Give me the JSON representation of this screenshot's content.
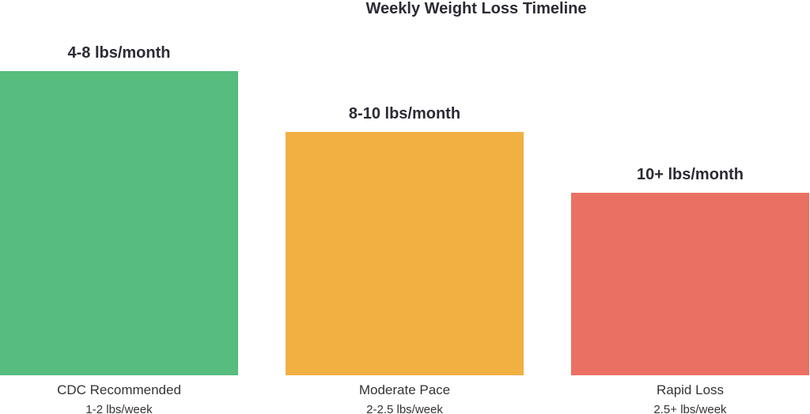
{
  "chart_data": {
    "type": "bar",
    "title": "Weekly Weight Loss Timeline",
    "categories": [
      "CDC Recommended",
      "Moderate Pace",
      "Rapid Loss"
    ],
    "sublabels": [
      "1-2 lbs/week",
      "2-2.5 lbs/week",
      "2.5+ lbs/week"
    ],
    "data_labels": [
      "4-8 lbs/month",
      "8-10 lbs/month",
      "10+ lbs/month"
    ],
    "values": [
      100,
      80,
      60
    ],
    "colors": [
      "#56bd7e",
      "#f2b043",
      "#ea7063"
    ],
    "ylim": [
      0,
      100
    ],
    "grid": false,
    "legend": "none",
    "xlabel": "",
    "ylabel": ""
  }
}
